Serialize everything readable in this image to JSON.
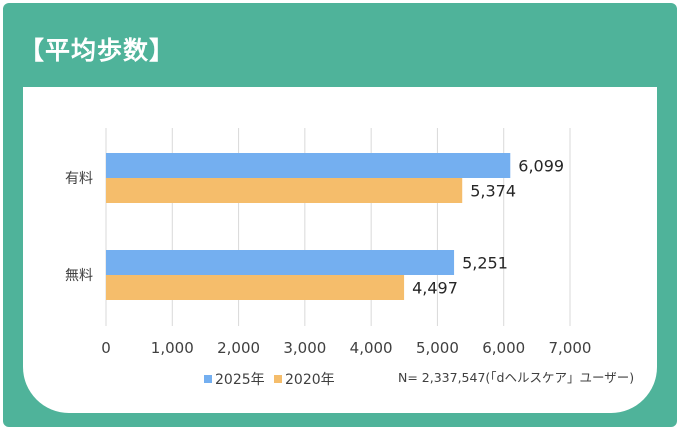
{
  "header": {
    "title": "【平均歩数】"
  },
  "chart_data": {
    "type": "bar",
    "orientation": "horizontal",
    "categories": [
      "有料",
      "無料"
    ],
    "series": [
      {
        "name": "2025年",
        "values": [
          6099,
          5251
        ],
        "value_labels": [
          "6,099",
          "5,251"
        ],
        "color": "#74aff0"
      },
      {
        "name": "2020年",
        "values": [
          5374,
          4497
        ],
        "value_labels": [
          "5,374",
          "4,497"
        ],
        "color": "#f5bd6b"
      }
    ],
    "xlim": [
      0,
      7000
    ],
    "xticks": [
      0,
      1000,
      2000,
      3000,
      4000,
      5000,
      6000,
      7000
    ],
    "xtick_labels": [
      "0",
      "1,000",
      "2,000",
      "3,000",
      "4,000",
      "5,000",
      "6,000",
      "7,000"
    ],
    "grid": true,
    "legend_position": "bottom"
  },
  "note": "N= 2,337,547(「dヘルスケア」ユーザー)",
  "colors": {
    "frame": "#4fb39a",
    "card": "#ffffff",
    "grid": "#d9d9d9"
  }
}
